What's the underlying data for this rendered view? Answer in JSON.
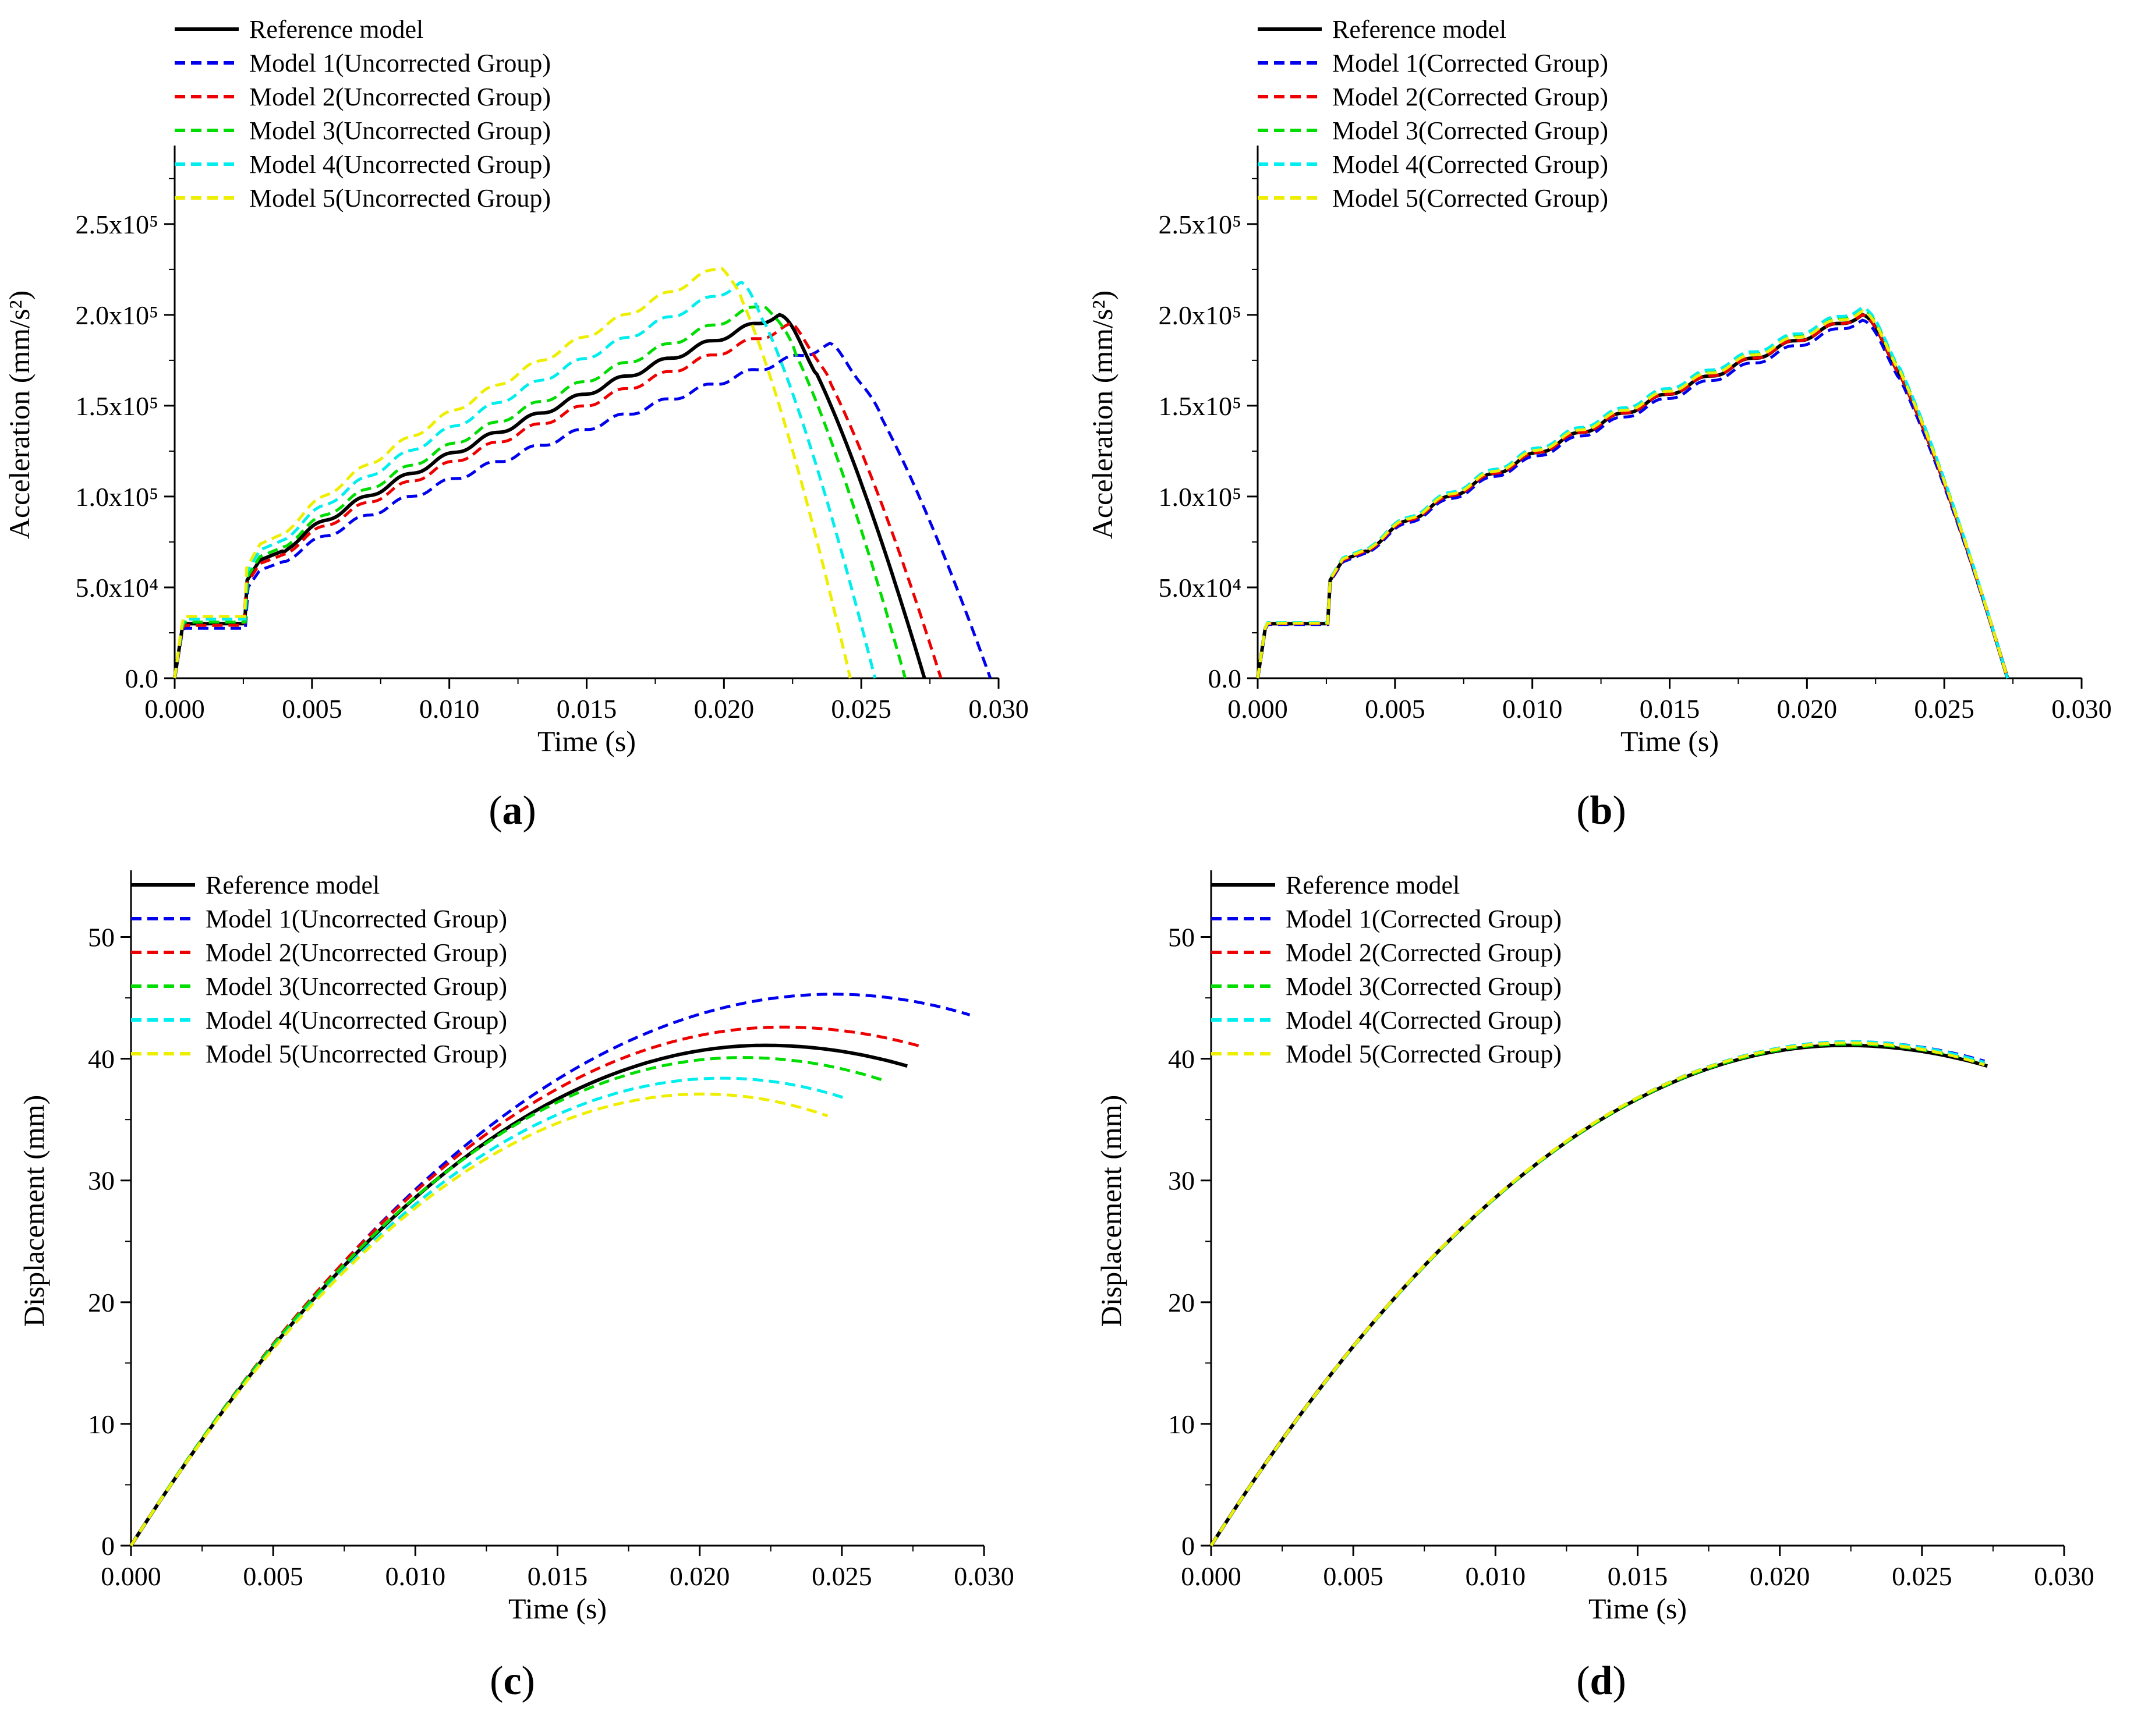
{
  "figure": {
    "colors": {
      "reference": "#000000",
      "model1": "#0000ee",
      "model2": "#ee0000",
      "model3": "#00dd00",
      "model4": "#00eeee",
      "model5": "#eeee00"
    }
  },
  "chart_data": [
    {
      "id": "a",
      "caption": "a",
      "type": "line",
      "quantity": "acceleration",
      "xlabel": "Time (s)",
      "ylabel": "Acceleration (mm/s²)",
      "xlim": [
        0,
        0.03
      ],
      "ylim": [
        0,
        290000
      ],
      "xticks": [
        0,
        0.005,
        0.01,
        0.015,
        0.02,
        0.025,
        0.03
      ],
      "xtick_labels": [
        "0.000",
        "0.005",
        "0.010",
        "0.015",
        "0.020",
        "0.025",
        "0.030"
      ],
      "yticks": [
        0,
        50000,
        100000,
        150000,
        200000,
        250000
      ],
      "ytick_labels": [
        "0.0",
        "5.0x10⁴",
        "1.0x10⁵",
        "1.5x10⁵",
        "2.0x10⁵",
        "2.5x10⁵"
      ],
      "legend_position": "top-left",
      "series": [
        {
          "name": "Reference model",
          "color_key": "reference",
          "style": "solid",
          "scale": 1.0,
          "shift": 0.0
        },
        {
          "name": "Model 1(Uncorrected Group)",
          "color_key": "model1",
          "style": "dashed",
          "scale": 0.915,
          "shift": 0.0024
        },
        {
          "name": "Model 2(Uncorrected Group)",
          "color_key": "model2",
          "style": "dashed",
          "scale": 0.97,
          "shift": 0.0006
        },
        {
          "name": "Model 3(Uncorrected Group)",
          "color_key": "model3",
          "style": "dashed",
          "scale": 1.03,
          "shift": -0.0007
        },
        {
          "name": "Model 4(Uncorrected Group)",
          "color_key": "model4",
          "style": "dashed",
          "scale": 1.085,
          "shift": -0.0018
        },
        {
          "name": "Model 5(Uncorrected Group)",
          "color_key": "model5",
          "style": "dashed",
          "scale": 1.135,
          "shift": -0.0027
        }
      ]
    },
    {
      "id": "b",
      "caption": "b",
      "type": "line",
      "quantity": "acceleration",
      "xlabel": "Time (s)",
      "ylabel": "Acceleration (mm/s²)",
      "xlim": [
        0,
        0.03
      ],
      "ylim": [
        0,
        290000
      ],
      "xticks": [
        0,
        0.005,
        0.01,
        0.015,
        0.02,
        0.025,
        0.03
      ],
      "xtick_labels": [
        "0.000",
        "0.005",
        "0.010",
        "0.015",
        "0.020",
        "0.025",
        "0.030"
      ],
      "yticks": [
        0,
        50000,
        100000,
        150000,
        200000,
        250000
      ],
      "ytick_labels": [
        "0.0",
        "5.0x10⁴",
        "1.0x10⁵",
        "1.5x10⁵",
        "2.0x10⁵",
        "2.5x10⁵"
      ],
      "legend_position": "top-left",
      "series": [
        {
          "name": "Reference model",
          "color_key": "reference",
          "style": "solid",
          "scale": 1.0,
          "shift": 0.0
        },
        {
          "name": "Model 1(Corrected Group)",
          "color_key": "model1",
          "style": "dashed",
          "scale": 0.985,
          "shift": 0.0
        },
        {
          "name": "Model 2(Corrected Group)",
          "color_key": "model2",
          "style": "dashed",
          "scale": 1.0,
          "shift": 0.0
        },
        {
          "name": "Model 3(Corrected Group)",
          "color_key": "model3",
          "style": "dashed",
          "scale": 1.015,
          "shift": 0.0
        },
        {
          "name": "Model 4(Corrected Group)",
          "color_key": "model4",
          "style": "dashed",
          "scale": 1.02,
          "shift": 0.0
        },
        {
          "name": "Model 5(Corrected Group)",
          "color_key": "model5",
          "style": "dashed",
          "scale": 1.01,
          "shift": 0.0
        }
      ]
    },
    {
      "id": "c",
      "caption": "c",
      "type": "line",
      "quantity": "displacement",
      "xlabel": "Time (s)",
      "ylabel": "Displacement (mm)",
      "xlim": [
        0,
        0.03
      ],
      "ylim": [
        0,
        55
      ],
      "xticks": [
        0,
        0.005,
        0.01,
        0.015,
        0.02,
        0.025,
        0.03
      ],
      "xtick_labels": [
        "0.000",
        "0.005",
        "0.010",
        "0.015",
        "0.020",
        "0.025",
        "0.030"
      ],
      "yticks": [
        0,
        10,
        20,
        30,
        40,
        50
      ],
      "ytick_labels": [
        "0",
        "10",
        "20",
        "30",
        "40",
        "50"
      ],
      "legend_position": "top-left",
      "series": [
        {
          "name": "Reference model",
          "color_key": "reference",
          "style": "solid",
          "peak_t": 0.0223,
          "peak": 41.1,
          "end_t": 0.0273,
          "end_y": 39.4
        },
        {
          "name": "Model 1(Uncorrected Group)",
          "color_key": "model1",
          "style": "dashed",
          "peak_t": 0.0247,
          "peak": 45.3,
          "end_t": 0.0295,
          "end_y": 43.6
        },
        {
          "name": "Model 2(Uncorrected Group)",
          "color_key": "model2",
          "style": "dashed",
          "peak_t": 0.0229,
          "peak": 42.6,
          "end_t": 0.0278,
          "end_y": 41.0
        },
        {
          "name": "Model 3(Uncorrected Group)",
          "color_key": "model3",
          "style": "dashed",
          "peak_t": 0.0215,
          "peak": 40.1,
          "end_t": 0.0265,
          "end_y": 38.2
        },
        {
          "name": "Model 4(Uncorrected Group)",
          "color_key": "model4",
          "style": "dashed",
          "peak_t": 0.0208,
          "peak": 38.4,
          "end_t": 0.0252,
          "end_y": 36.7
        },
        {
          "name": "Model 5(Uncorrected Group)",
          "color_key": "model5",
          "style": "dashed",
          "peak_t": 0.0201,
          "peak": 37.1,
          "end_t": 0.0245,
          "end_y": 35.3
        }
      ]
    },
    {
      "id": "d",
      "caption": "d",
      "type": "line",
      "quantity": "displacement",
      "xlabel": "Time (s)",
      "ylabel": "Displacement (mm)",
      "xlim": [
        0,
        0.03
      ],
      "ylim": [
        0,
        55
      ],
      "xticks": [
        0,
        0.005,
        0.01,
        0.015,
        0.02,
        0.025,
        0.03
      ],
      "xtick_labels": [
        "0.000",
        "0.005",
        "0.010",
        "0.015",
        "0.020",
        "0.025",
        "0.030"
      ],
      "yticks": [
        0,
        10,
        20,
        30,
        40,
        50
      ],
      "ytick_labels": [
        "0",
        "10",
        "20",
        "30",
        "40",
        "50"
      ],
      "legend_position": "top-left",
      "series": [
        {
          "name": "Reference model",
          "color_key": "reference",
          "style": "solid",
          "peak_t": 0.0223,
          "peak": 41.1,
          "end_t": 0.0273,
          "end_y": 39.4
        },
        {
          "name": "Model 1(Corrected Group)",
          "color_key": "model1",
          "style": "dashed",
          "peak_t": 0.0225,
          "peak": 41.4,
          "end_t": 0.0272,
          "end_y": 39.8
        },
        {
          "name": "Model 2(Corrected Group)",
          "color_key": "model2",
          "style": "dashed",
          "peak_t": 0.0224,
          "peak": 41.3,
          "end_t": 0.0272,
          "end_y": 39.6
        },
        {
          "name": "Model 3(Corrected Group)",
          "color_key": "model3",
          "style": "dashed",
          "peak_t": 0.0224,
          "peak": 41.2,
          "end_t": 0.0272,
          "end_y": 39.6
        },
        {
          "name": "Model 4(Corrected Group)",
          "color_key": "model4",
          "style": "dashed",
          "peak_t": 0.0225,
          "peak": 41.4,
          "end_t": 0.0272,
          "end_y": 39.7
        },
        {
          "name": "Model 5(Corrected Group)",
          "color_key": "model5",
          "style": "dashed",
          "peak_t": 0.0224,
          "peak": 41.3,
          "end_t": 0.0272,
          "end_y": 39.5
        }
      ]
    }
  ]
}
